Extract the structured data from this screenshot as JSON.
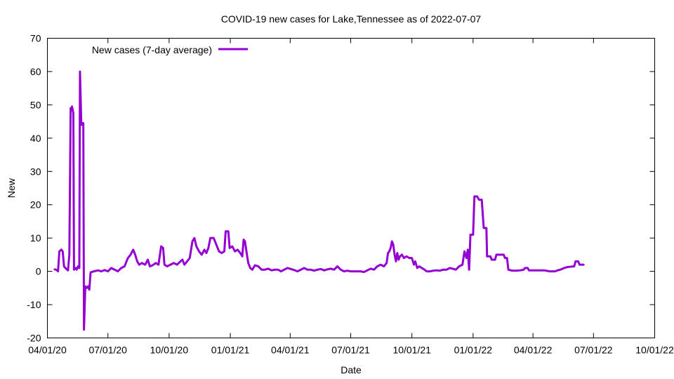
{
  "chart_data": {
    "type": "line",
    "title": "COVID-19 new cases for Lake,Tennessee as of 2022-07-07",
    "xlabel": "Date",
    "ylabel": "New",
    "ylim": [
      -20,
      70
    ],
    "xlim": [
      "2020-04-01",
      "2022-10-01"
    ],
    "x_tick_labels": [
      "04/01/20",
      "07/01/20",
      "10/01/20",
      "01/01/21",
      "04/01/21",
      "07/01/21",
      "10/01/21",
      "01/01/22",
      "04/01/22",
      "07/01/22",
      "10/01/22"
    ],
    "x_tick_dates": [
      "2020-04-01",
      "2020-07-01",
      "2020-10-01",
      "2021-01-01",
      "2021-04-01",
      "2021-07-01",
      "2021-10-01",
      "2022-01-01",
      "2022-04-01",
      "2022-07-01",
      "2022-10-01"
    ],
    "y_ticks": [
      -20,
      -10,
      0,
      10,
      20,
      30,
      40,
      50,
      60,
      70
    ],
    "grid": false,
    "legend_position": "top-left",
    "series": [
      {
        "name": "New cases (7-day average)",
        "color": "#9400d3",
        "points": [
          [
            "2020-04-12",
            0.6
          ],
          [
            "2020-04-15",
            0.4
          ],
          [
            "2020-04-17",
            0.0
          ],
          [
            "2020-04-19",
            6.0
          ],
          [
            "2020-04-22",
            6.5
          ],
          [
            "2020-04-24",
            6.0
          ],
          [
            "2020-04-26",
            1.5
          ],
          [
            "2020-04-29",
            0.8
          ],
          [
            "2020-05-02",
            0.3
          ],
          [
            "2020-05-04",
            5.0
          ],
          [
            "2020-05-06",
            49.0
          ],
          [
            "2020-05-07",
            48.5
          ],
          [
            "2020-05-08",
            49.5
          ],
          [
            "2020-05-10",
            47.5
          ],
          [
            "2020-05-11",
            0.5
          ],
          [
            "2020-05-13",
            1.0
          ],
          [
            "2020-05-15",
            0.5
          ],
          [
            "2020-05-17",
            1.5
          ],
          [
            "2020-05-19",
            1.0
          ],
          [
            "2020-05-20",
            60.0
          ],
          [
            "2020-05-22",
            44.0
          ],
          [
            "2020-05-23",
            44.5
          ],
          [
            "2020-05-25",
            44.5
          ],
          [
            "2020-05-26",
            -17.5
          ],
          [
            "2020-05-28",
            -4.5
          ],
          [
            "2020-05-30",
            -5.0
          ],
          [
            "2020-06-01",
            -4.5
          ],
          [
            "2020-06-03",
            -5.5
          ],
          [
            "2020-06-05",
            -0.3
          ],
          [
            "2020-06-10",
            0.0
          ],
          [
            "2020-06-16",
            0.3
          ],
          [
            "2020-06-21",
            0.0
          ],
          [
            "2020-06-26",
            0.4
          ],
          [
            "2020-07-01",
            0.0
          ],
          [
            "2020-07-06",
            1.0
          ],
          [
            "2020-07-11",
            0.5
          ],
          [
            "2020-07-16",
            0.0
          ],
          [
            "2020-07-21",
            1.0
          ],
          [
            "2020-07-26",
            1.5
          ],
          [
            "2020-07-31",
            4.0
          ],
          [
            "2020-08-04",
            5.0
          ],
          [
            "2020-08-08",
            6.5
          ],
          [
            "2020-08-11",
            5.0
          ],
          [
            "2020-08-14",
            3.0
          ],
          [
            "2020-08-17",
            2.0
          ],
          [
            "2020-08-21",
            2.5
          ],
          [
            "2020-08-26",
            2.0
          ],
          [
            "2020-08-30",
            3.5
          ],
          [
            "2020-09-02",
            1.5
          ],
          [
            "2020-09-06",
            1.8
          ],
          [
            "2020-09-11",
            2.5
          ],
          [
            "2020-09-15",
            2.0
          ],
          [
            "2020-09-19",
            7.5
          ],
          [
            "2020-09-22",
            7.0
          ],
          [
            "2020-09-24",
            2.0
          ],
          [
            "2020-09-28",
            1.5
          ],
          [
            "2020-10-03",
            2.0
          ],
          [
            "2020-10-08",
            2.5
          ],
          [
            "2020-10-13",
            2.0
          ],
          [
            "2020-10-18",
            3.0
          ],
          [
            "2020-10-21",
            3.5
          ],
          [
            "2020-10-24",
            2.0
          ],
          [
            "2020-10-28",
            3.0
          ],
          [
            "2020-11-01",
            4.0
          ],
          [
            "2020-11-05",
            9.0
          ],
          [
            "2020-11-08",
            10.0
          ],
          [
            "2020-11-11",
            7.5
          ],
          [
            "2020-11-15",
            6.0
          ],
          [
            "2020-11-19",
            5.0
          ],
          [
            "2020-11-23",
            6.5
          ],
          [
            "2020-11-26",
            5.5
          ],
          [
            "2020-11-29",
            7.0
          ],
          [
            "2020-12-02",
            10.0
          ],
          [
            "2020-12-07",
            10.0
          ],
          [
            "2020-12-11",
            8.0
          ],
          [
            "2020-12-15",
            6.0
          ],
          [
            "2020-12-19",
            5.5
          ],
          [
            "2020-12-23",
            6.0
          ],
          [
            "2020-12-25",
            12.0
          ],
          [
            "2020-12-29",
            12.0
          ],
          [
            "2020-12-31",
            7.0
          ],
          [
            "2021-01-04",
            7.5
          ],
          [
            "2021-01-08",
            6.0
          ],
          [
            "2021-01-12",
            6.5
          ],
          [
            "2021-01-16",
            5.5
          ],
          [
            "2021-01-19",
            4.5
          ],
          [
            "2021-01-21",
            9.5
          ],
          [
            "2021-01-23",
            9.0
          ],
          [
            "2021-01-26",
            5.0
          ],
          [
            "2021-01-28",
            2.5
          ],
          [
            "2021-01-31",
            1.0
          ],
          [
            "2021-02-03",
            0.5
          ],
          [
            "2021-02-07",
            1.8
          ],
          [
            "2021-02-12",
            1.5
          ],
          [
            "2021-02-17",
            0.5
          ],
          [
            "2021-02-22",
            0.5
          ],
          [
            "2021-02-27",
            0.8
          ],
          [
            "2021-03-04",
            0.3
          ],
          [
            "2021-03-09",
            0.5
          ],
          [
            "2021-03-14",
            0.5
          ],
          [
            "2021-03-18",
            0.0
          ],
          [
            "2021-03-23",
            0.5
          ],
          [
            "2021-03-28",
            1.0
          ],
          [
            "2021-04-02",
            0.7
          ],
          [
            "2021-04-07",
            0.4
          ],
          [
            "2021-04-12",
            0.0
          ],
          [
            "2021-04-17",
            0.5
          ],
          [
            "2021-04-22",
            1.0
          ],
          [
            "2021-04-27",
            0.5
          ],
          [
            "2021-05-02",
            0.5
          ],
          [
            "2021-05-07",
            0.2
          ],
          [
            "2021-05-12",
            0.5
          ],
          [
            "2021-05-17",
            0.7
          ],
          [
            "2021-05-22",
            0.3
          ],
          [
            "2021-05-27",
            0.6
          ],
          [
            "2021-06-01",
            0.8
          ],
          [
            "2021-06-06",
            0.5
          ],
          [
            "2021-06-11",
            1.5
          ],
          [
            "2021-06-16",
            0.5
          ],
          [
            "2021-06-21",
            0.0
          ],
          [
            "2021-06-26",
            0.2
          ],
          [
            "2021-07-01",
            0.0
          ],
          [
            "2021-07-06",
            0.0
          ],
          [
            "2021-07-11",
            0.0
          ],
          [
            "2021-07-16",
            0.0
          ],
          [
            "2021-07-21",
            -0.2
          ],
          [
            "2021-07-26",
            0.3
          ],
          [
            "2021-07-31",
            0.8
          ],
          [
            "2021-08-05",
            0.5
          ],
          [
            "2021-08-10",
            1.5
          ],
          [
            "2021-08-15",
            2.0
          ],
          [
            "2021-08-20",
            1.5
          ],
          [
            "2021-08-24",
            2.5
          ],
          [
            "2021-08-26",
            5.5
          ],
          [
            "2021-08-28",
            6.0
          ],
          [
            "2021-08-30",
            7.0
          ],
          [
            "2021-09-01",
            9.0
          ],
          [
            "2021-09-03",
            8.0
          ],
          [
            "2021-09-05",
            5.0
          ],
          [
            "2021-09-07",
            3.0
          ],
          [
            "2021-09-09",
            5.5
          ],
          [
            "2021-09-11",
            3.5
          ],
          [
            "2021-09-13",
            4.5
          ],
          [
            "2021-09-16",
            5.0
          ],
          [
            "2021-09-19",
            4.0
          ],
          [
            "2021-09-23",
            4.5
          ],
          [
            "2021-09-27",
            4.0
          ],
          [
            "2021-10-01",
            4.0
          ],
          [
            "2021-10-04",
            2.0
          ],
          [
            "2021-10-06",
            3.0
          ],
          [
            "2021-10-09",
            1.0
          ],
          [
            "2021-10-12",
            1.5
          ],
          [
            "2021-10-16",
            1.0
          ],
          [
            "2021-10-20",
            0.5
          ],
          [
            "2021-10-23",
            0.0
          ],
          [
            "2021-10-28",
            0.0
          ],
          [
            "2021-11-02",
            0.2
          ],
          [
            "2021-11-07",
            0.3
          ],
          [
            "2021-11-12",
            0.2
          ],
          [
            "2021-11-17",
            0.5
          ],
          [
            "2021-11-22",
            0.5
          ],
          [
            "2021-11-27",
            1.0
          ],
          [
            "2021-12-01",
            0.8
          ],
          [
            "2021-12-06",
            0.5
          ],
          [
            "2021-12-11",
            1.5
          ],
          [
            "2021-12-16",
            2.0
          ],
          [
            "2021-12-19",
            6.0
          ],
          [
            "2021-12-22",
            4.0
          ],
          [
            "2021-12-24",
            6.5
          ],
          [
            "2021-12-26",
            0.5
          ],
          [
            "2021-12-28",
            11.0
          ],
          [
            "2022-01-01",
            11.0
          ],
          [
            "2022-01-03",
            22.5
          ],
          [
            "2022-01-07",
            22.5
          ],
          [
            "2022-01-10",
            21.5
          ],
          [
            "2022-01-14",
            21.5
          ],
          [
            "2022-01-17",
            13.0
          ],
          [
            "2022-01-21",
            13.0
          ],
          [
            "2022-01-22",
            4.5
          ],
          [
            "2022-01-27",
            4.5
          ],
          [
            "2022-01-29",
            3.5
          ],
          [
            "2022-02-03",
            3.5
          ],
          [
            "2022-02-05",
            5.0
          ],
          [
            "2022-02-16",
            5.0
          ],
          [
            "2022-02-18",
            4.0
          ],
          [
            "2022-02-21",
            4.0
          ],
          [
            "2022-02-23",
            0.5
          ],
          [
            "2022-03-01",
            0.2
          ],
          [
            "2022-03-07",
            0.2
          ],
          [
            "2022-03-13",
            0.3
          ],
          [
            "2022-03-18",
            0.5
          ],
          [
            "2022-03-20",
            1.0
          ],
          [
            "2022-03-24",
            1.0
          ],
          [
            "2022-03-26",
            0.3
          ],
          [
            "2022-04-02",
            0.3
          ],
          [
            "2022-04-10",
            0.3
          ],
          [
            "2022-04-18",
            0.3
          ],
          [
            "2022-04-26",
            0.0
          ],
          [
            "2022-05-04",
            0.0
          ],
          [
            "2022-05-08",
            0.3
          ],
          [
            "2022-05-12",
            0.5
          ],
          [
            "2022-05-18",
            1.0
          ],
          [
            "2022-05-23",
            1.3
          ],
          [
            "2022-06-02",
            1.5
          ],
          [
            "2022-06-04",
            3.0
          ],
          [
            "2022-06-08",
            3.0
          ],
          [
            "2022-06-10",
            2.0
          ],
          [
            "2022-06-16",
            2.0
          ]
        ]
      }
    ]
  }
}
